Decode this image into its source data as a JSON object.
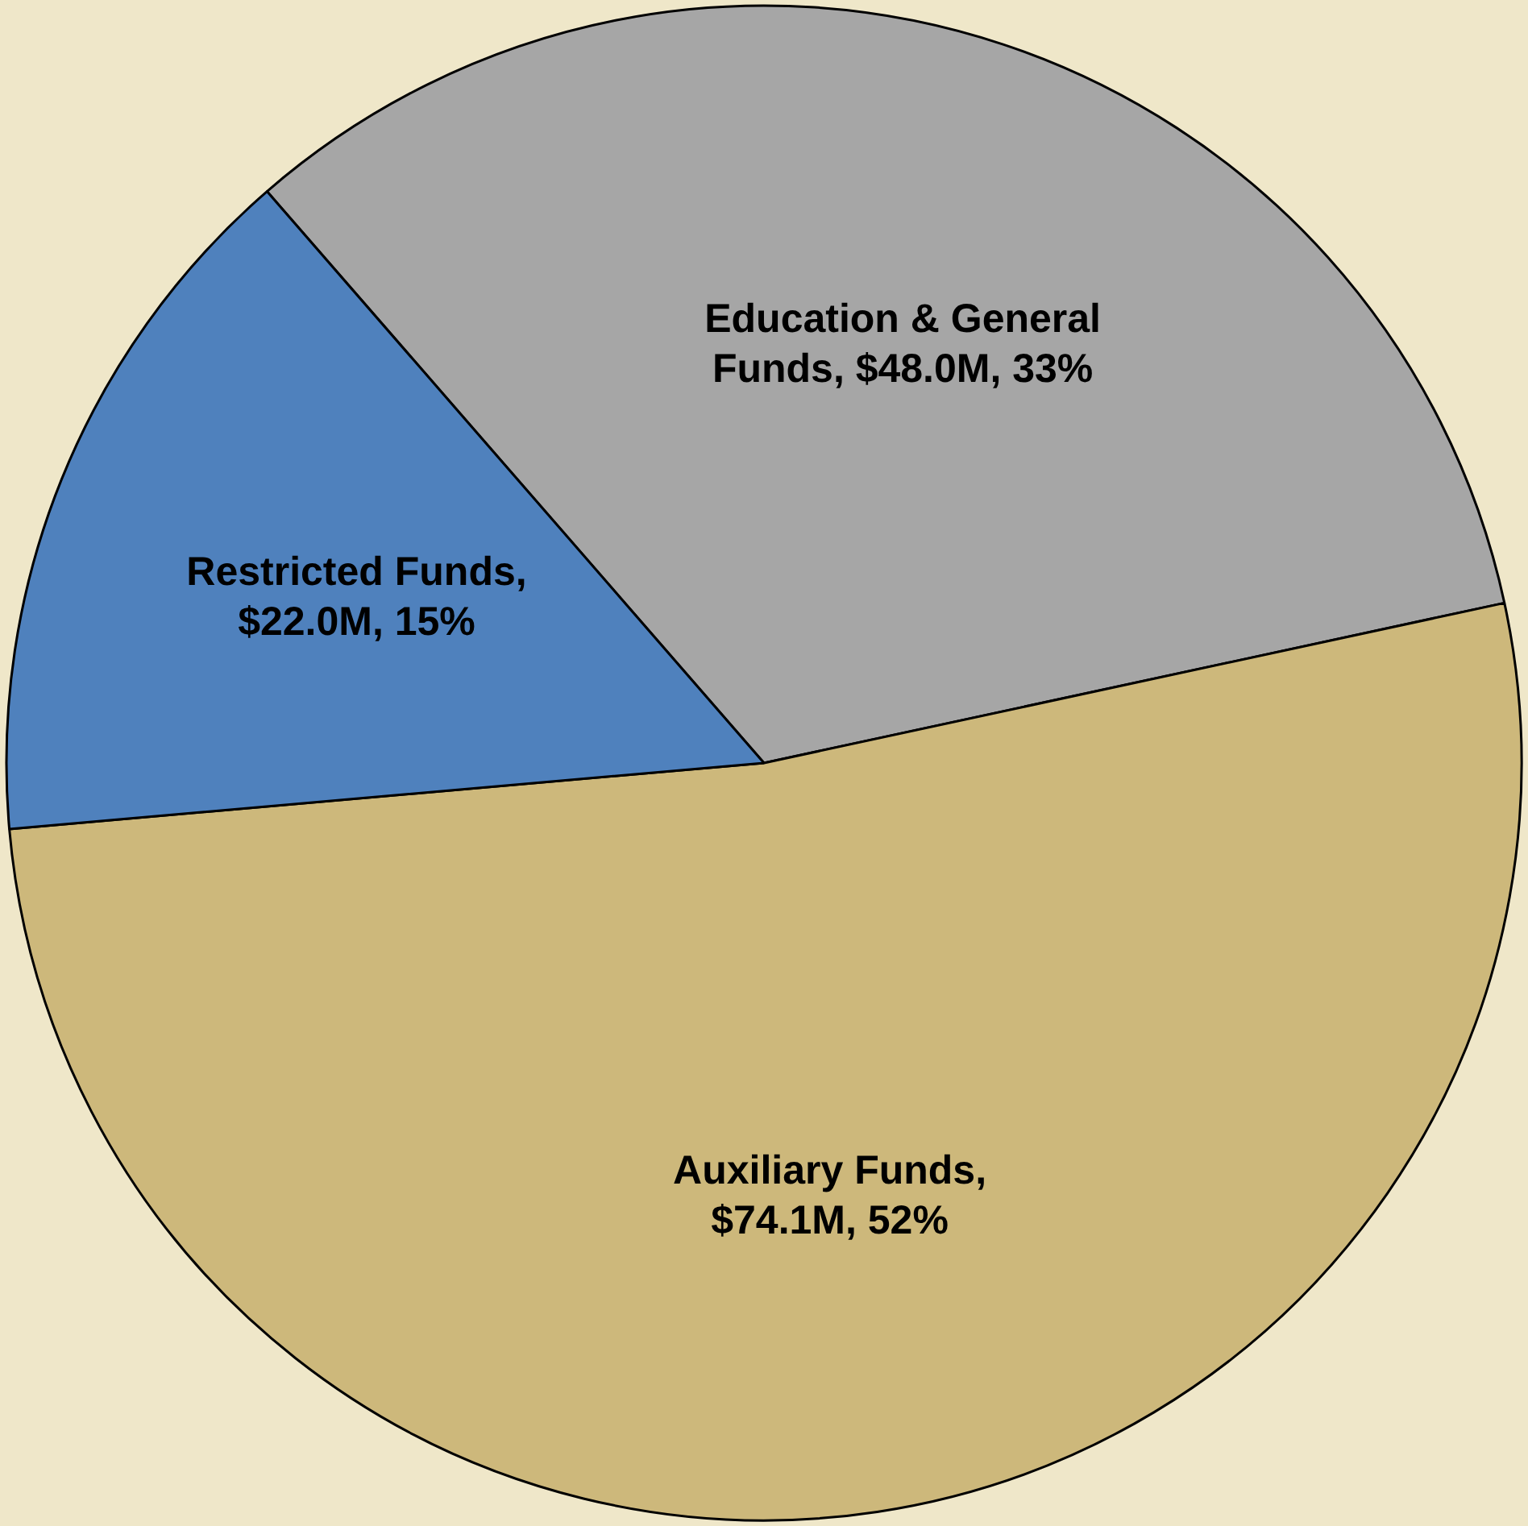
{
  "chart_data": {
    "type": "pie",
    "categories": [
      "Education & General Funds, $48.0M, 33%",
      "Auxiliary Funds, $74.1M, 52%",
      "Restricted Funds, $22.0M, 15%"
    ],
    "values": [
      33,
      52,
      15
    ],
    "colors": [
      "#a6a6a6",
      "#cdb87b",
      "#4f81bd"
    ],
    "legend": false
  }
}
